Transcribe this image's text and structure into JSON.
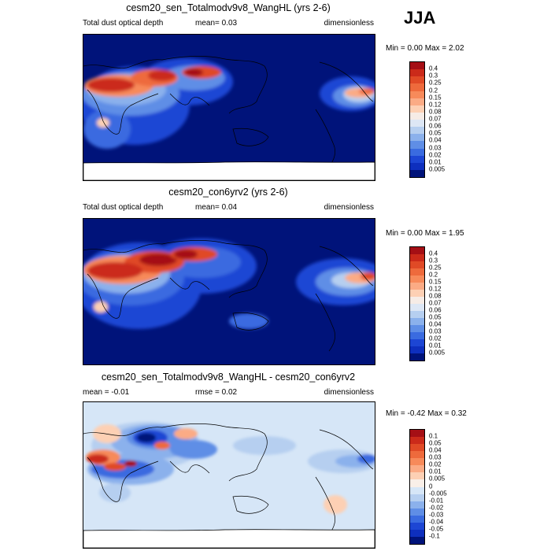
{
  "season": "JJA",
  "panels": [
    {
      "title": "cesm20_sen_Totalmodv9v8_WangHL (yrs 2-6)",
      "left_label": "Total dust optical depth",
      "mid_label": "mean=   0.03",
      "right_label": "dimensionless",
      "minmax": "Min =  0.00 Max =  2.02",
      "levels": [
        "0.4",
        "0.3",
        "0.25",
        "0.2",
        "0.15",
        "0.12",
        "0.08",
        "0.07",
        "0.06",
        "0.05",
        "0.04",
        "0.03",
        "0.02",
        "0.01",
        "0.005"
      ],
      "colors": [
        "#a50f15",
        "#cb2a1a",
        "#e04a26",
        "#ee6a3c",
        "#f78a5a",
        "#fbab85",
        "#fdd0b4",
        "#f6ece6",
        "#dde7f5",
        "#b6cff0",
        "#8bb1ec",
        "#5f8ee6",
        "#3a6be0",
        "#1d46d4",
        "#0e2fbe",
        "#00137a"
      ]
    },
    {
      "title": "cesm20_con6yrv2 (yrs 2-6)",
      "left_label": "Total dust optical depth",
      "mid_label": "mean=   0.04",
      "right_label": "dimensionless",
      "minmax": "Min =  0.00 Max =  1.95",
      "levels": [
        "0.4",
        "0.3",
        "0.25",
        "0.2",
        "0.15",
        "0.12",
        "0.08",
        "0.07",
        "0.06",
        "0.05",
        "0.04",
        "0.03",
        "0.02",
        "0.01",
        "0.005"
      ],
      "colors": [
        "#a50f15",
        "#cb2a1a",
        "#e04a26",
        "#ee6a3c",
        "#f78a5a",
        "#fbab85",
        "#fdd0b4",
        "#f6ece6",
        "#dde7f5",
        "#b6cff0",
        "#8bb1ec",
        "#5f8ee6",
        "#3a6be0",
        "#1d46d4",
        "#0e2fbe",
        "#00137a"
      ]
    },
    {
      "title": "cesm20_sen_Totalmodv9v8_WangHL - cesm20_con6yrv2",
      "left_label": "mean =  -0.01",
      "mid_label": "rmse =   0.02",
      "right_label": "dimensionless",
      "minmax": "Min =  -0.42 Max =  0.32",
      "levels": [
        "0.1",
        "0.05",
        "0.04",
        "0.03",
        "0.02",
        "0.01",
        "0.005",
        "0",
        "-0.005",
        "-0.01",
        "-0.02",
        "-0.03",
        "-0.04",
        "-0.05",
        "-0.1"
      ],
      "colors": [
        "#a50f15",
        "#cb2a1a",
        "#e04a26",
        "#ee6a3c",
        "#f78a5a",
        "#fbab85",
        "#fdd0b4",
        "#f9efe8",
        "#d6e6f7",
        "#b6cff0",
        "#8bb1ec",
        "#5f8ee6",
        "#3a6be0",
        "#1d46d4",
        "#0e2fbe",
        "#00137a"
      ]
    }
  ]
}
